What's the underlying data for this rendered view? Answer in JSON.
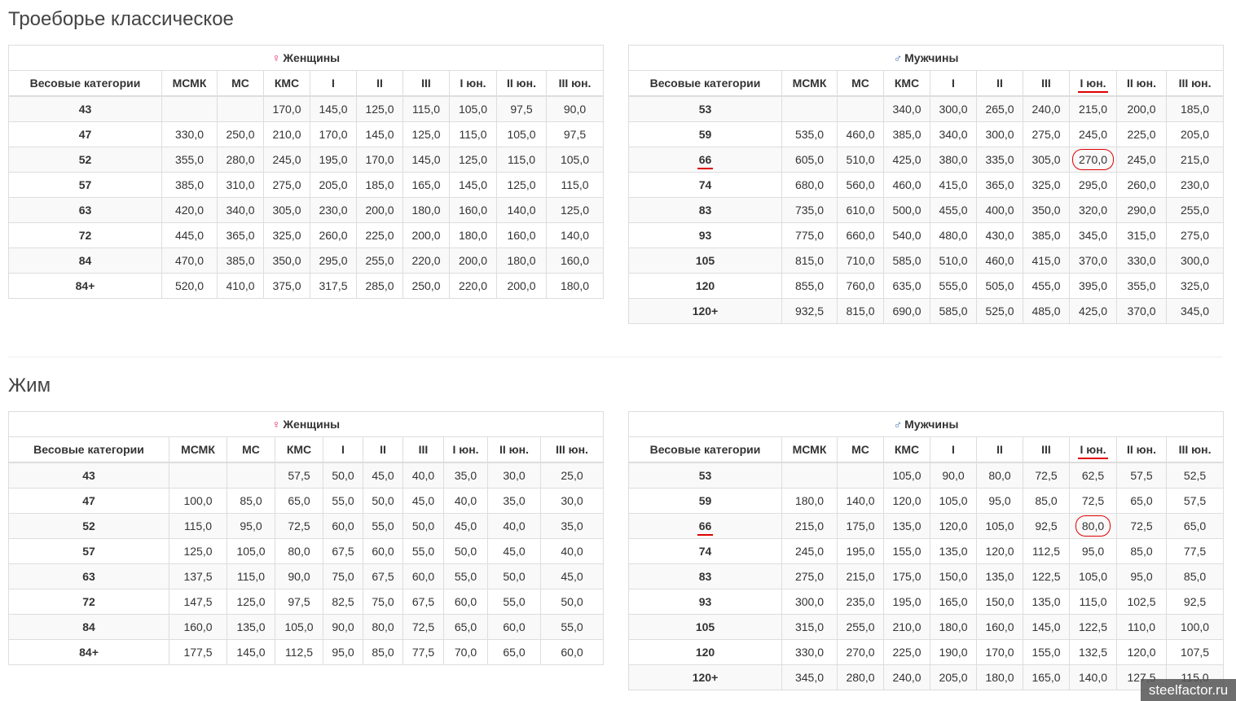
{
  "sections": [
    {
      "title": "Троеборье классическое",
      "tables": [
        {
          "group_symbol": "♀",
          "group_label": "Женщины",
          "columns": [
            "Весовые категории",
            "МСМК",
            "МС",
            "КМС",
            "I",
            "II",
            "III",
            "I юн.",
            "II юн.",
            "III юн."
          ],
          "rows": [
            [
              "43",
              "",
              "",
              "170,0",
              "145,0",
              "125,0",
              "115,0",
              "105,0",
              "97,5",
              "90,0"
            ],
            [
              "47",
              "330,0",
              "250,0",
              "210,0",
              "170,0",
              "145,0",
              "125,0",
              "115,0",
              "105,0",
              "97,5"
            ],
            [
              "52",
              "355,0",
              "280,0",
              "245,0",
              "195,0",
              "170,0",
              "145,0",
              "125,0",
              "115,0",
              "105,0"
            ],
            [
              "57",
              "385,0",
              "310,0",
              "275,0",
              "205,0",
              "185,0",
              "165,0",
              "145,0",
              "125,0",
              "115,0"
            ],
            [
              "63",
              "420,0",
              "340,0",
              "305,0",
              "230,0",
              "200,0",
              "180,0",
              "160,0",
              "140,0",
              "125,0"
            ],
            [
              "72",
              "445,0",
              "365,0",
              "325,0",
              "260,0",
              "225,0",
              "200,0",
              "180,0",
              "160,0",
              "140,0"
            ],
            [
              "84",
              "470,0",
              "385,0",
              "350,0",
              "295,0",
              "255,0",
              "220,0",
              "200,0",
              "180,0",
              "160,0"
            ],
            [
              "84+",
              "520,0",
              "410,0",
              "375,0",
              "317,5",
              "285,0",
              "250,0",
              "220,0",
              "200,0",
              "180,0"
            ]
          ]
        },
        {
          "group_symbol": "♂",
          "group_label": "Мужчины",
          "columns": [
            "Весовые категории",
            "МСМК",
            "МС",
            "КМС",
            "I",
            "II",
            "III",
            "I юн.",
            "II юн.",
            "III юн."
          ],
          "rows": [
            [
              "53",
              "",
              "",
              "340,0",
              "300,0",
              "265,0",
              "240,0",
              "215,0",
              "200,0",
              "185,0"
            ],
            [
              "59",
              "535,0",
              "460,0",
              "385,0",
              "340,0",
              "300,0",
              "275,0",
              "245,0",
              "225,0",
              "205,0"
            ],
            [
              "66",
              "605,0",
              "510,0",
              "425,0",
              "380,0",
              "335,0",
              "305,0",
              "270,0",
              "245,0",
              "215,0"
            ],
            [
              "74",
              "680,0",
              "560,0",
              "460,0",
              "415,0",
              "365,0",
              "325,0",
              "295,0",
              "260,0",
              "230,0"
            ],
            [
              "83",
              "735,0",
              "610,0",
              "500,0",
              "455,0",
              "400,0",
              "350,0",
              "320,0",
              "290,0",
              "255,0"
            ],
            [
              "93",
              "775,0",
              "660,0",
              "540,0",
              "480,0",
              "430,0",
              "385,0",
              "345,0",
              "315,0",
              "275,0"
            ],
            [
              "105",
              "815,0",
              "710,0",
              "585,0",
              "510,0",
              "460,0",
              "415,0",
              "370,0",
              "330,0",
              "300,0"
            ],
            [
              "120",
              "855,0",
              "760,0",
              "635,0",
              "555,0",
              "505,0",
              "455,0",
              "395,0",
              "355,0",
              "325,0"
            ],
            [
              "120+",
              "932,5",
              "815,0",
              "690,0",
              "585,0",
              "525,0",
              "485,0",
              "425,0",
              "370,0",
              "345,0"
            ]
          ]
        }
      ]
    },
    {
      "title": "Жим",
      "tables": [
        {
          "group_symbol": "♀",
          "group_label": "Женщины",
          "columns": [
            "Весовые категории",
            "МСМК",
            "МС",
            "КМС",
            "I",
            "II",
            "III",
            "I юн.",
            "II юн.",
            "III юн."
          ],
          "rows": [
            [
              "43",
              "",
              "",
              "57,5",
              "50,0",
              "45,0",
              "40,0",
              "35,0",
              "30,0",
              "25,0"
            ],
            [
              "47",
              "100,0",
              "85,0",
              "65,0",
              "55,0",
              "50,0",
              "45,0",
              "40,0",
              "35,0",
              "30,0"
            ],
            [
              "52",
              "115,0",
              "95,0",
              "72,5",
              "60,0",
              "55,0",
              "50,0",
              "45,0",
              "40,0",
              "35,0"
            ],
            [
              "57",
              "125,0",
              "105,0",
              "80,0",
              "67,5",
              "60,0",
              "55,0",
              "50,0",
              "45,0",
              "40,0"
            ],
            [
              "63",
              "137,5",
              "115,0",
              "90,0",
              "75,0",
              "67,5",
              "60,0",
              "55,0",
              "50,0",
              "45,0"
            ],
            [
              "72",
              "147,5",
              "125,0",
              "97,5",
              "82,5",
              "75,0",
              "67,5",
              "60,0",
              "55,0",
              "50,0"
            ],
            [
              "84",
              "160,0",
              "135,0",
              "105,0",
              "90,0",
              "80,0",
              "72,5",
              "65,0",
              "60,0",
              "55,0"
            ],
            [
              "84+",
              "177,5",
              "145,0",
              "112,5",
              "95,0",
              "85,0",
              "77,5",
              "70,0",
              "65,0",
              "60,0"
            ]
          ]
        },
        {
          "group_symbol": "♂",
          "group_label": "Мужчины",
          "columns": [
            "Весовые категории",
            "МСМК",
            "МС",
            "КМС",
            "I",
            "II",
            "III",
            "I юн.",
            "II юн.",
            "III юн."
          ],
          "rows": [
            [
              "53",
              "",
              "",
              "105,0",
              "90,0",
              "80,0",
              "72,5",
              "62,5",
              "57,5",
              "52,5"
            ],
            [
              "59",
              "180,0",
              "140,0",
              "120,0",
              "105,0",
              "95,0",
              "85,0",
              "72,5",
              "65,0",
              "57,5"
            ],
            [
              "66",
              "215,0",
              "175,0",
              "135,0",
              "120,0",
              "105,0",
              "92,5",
              "80,0",
              "72,5",
              "65,0"
            ],
            [
              "74",
              "245,0",
              "195,0",
              "155,0",
              "135,0",
              "120,0",
              "112,5",
              "95,0",
              "85,0",
              "77,5"
            ],
            [
              "83",
              "275,0",
              "215,0",
              "175,0",
              "150,0",
              "135,0",
              "122,5",
              "105,0",
              "95,0",
              "85,0"
            ],
            [
              "93",
              "300,0",
              "235,0",
              "195,0",
              "165,0",
              "150,0",
              "135,0",
              "115,0",
              "102,5",
              "92,5"
            ],
            [
              "105",
              "315,0",
              "255,0",
              "210,0",
              "180,0",
              "160,0",
              "145,0",
              "122,5",
              "110,0",
              "100,0"
            ],
            [
              "120",
              "330,0",
              "270,0",
              "225,0",
              "190,0",
              "170,0",
              "155,0",
              "132,5",
              "120,0",
              "107,5"
            ],
            [
              "120+",
              "345,0",
              "280,0",
              "240,0",
              "205,0",
              "180,0",
              "165,0",
              "140,0",
              "127,5",
              "115,0"
            ]
          ]
        }
      ]
    }
  ],
  "annotations": {
    "color": "#e00000",
    "underlined_column": "I юн.",
    "underlined_row": "66",
    "circled_cells": [
      {
        "section": 0,
        "table": 1,
        "row": "66",
        "column": "I юн.",
        "value": "270,0"
      },
      {
        "section": 1,
        "table": 1,
        "row": "66",
        "column": "I юн.",
        "value": "80,0"
      }
    ]
  },
  "colors": {
    "female_symbol": "#e0245e",
    "male_symbol": "#3b6fb6",
    "border": "#dddddd",
    "stripe": "#f9f9f9"
  },
  "watermark": "steelfactor.ru"
}
